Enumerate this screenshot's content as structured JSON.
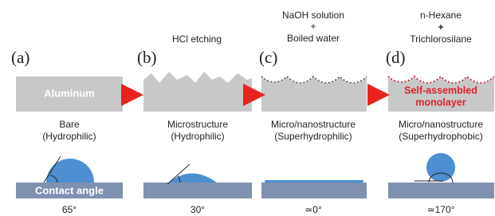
{
  "panels": [
    {
      "label": "(a)",
      "block_text": "Aluminum",
      "caption": [
        "Bare",
        "(Hydrophilic)"
      ],
      "substrate_text": "Contact angle",
      "angle": "65°"
    },
    {
      "label": "(b)",
      "treatment": [
        "HCl etching"
      ],
      "caption": [
        "Microstructure",
        "(Hydrophilic)"
      ],
      "angle": "30°"
    },
    {
      "label": "(c)",
      "treatment": [
        "NaOH solution",
        "+",
        "Boiled water"
      ],
      "caption": [
        "Micro/nanostructure",
        "(Superhydrophilic)"
      ],
      "angle": "≃0°"
    },
    {
      "label": "(d)",
      "treatment": [
        "n-Hexane",
        "+",
        "Trichlorosilane"
      ],
      "block_text": [
        "Self-assembled",
        "monolayer"
      ],
      "caption": [
        "Micro/nanostructure",
        "(Superhydrophobic)"
      ],
      "angle": "≃170°"
    }
  ]
}
